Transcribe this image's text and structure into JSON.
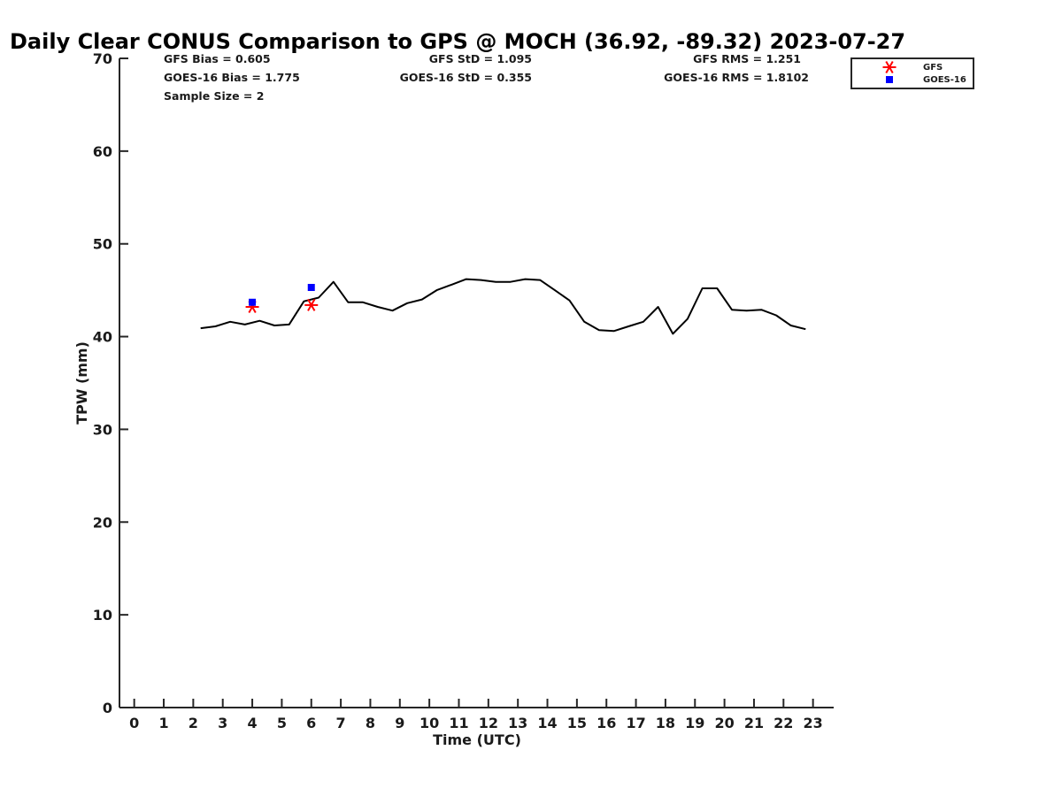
{
  "chart_data": {
    "type": "line",
    "title": "Daily Clear CONUS Comparison to GPS @ MOCH (36.92, -89.32) 2023-07-27",
    "xlabel": "Time (UTC)",
    "ylabel": "TPW (mm)",
    "xlim": [
      -0.5,
      23.7
    ],
    "ylim": [
      0,
      70
    ],
    "x_ticks": [
      0,
      1,
      2,
      3,
      4,
      5,
      6,
      7,
      8,
      9,
      10,
      11,
      12,
      13,
      14,
      15,
      16,
      17,
      18,
      19,
      20,
      21,
      22,
      23
    ],
    "y_ticks": [
      0,
      10,
      20,
      30,
      40,
      50,
      60,
      70
    ],
    "grid": false,
    "legend_position": "top-right",
    "stats": {
      "gfs_bias": "GFS Bias = 0.605",
      "goes_bias": "GOES-16 Bias = 1.775",
      "sample_size": "Sample Size = 2",
      "gfs_std": "GFS StD = 1.095",
      "goes_std": "GOES-16 StD = 0.355",
      "gfs_rms": "GFS RMS = 1.251",
      "goes_rms": "GOES-16 RMS = 1.8102"
    },
    "series": [
      {
        "name": "GPS",
        "kind": "line",
        "color": "#000000",
        "x": [
          2.25,
          2.75,
          3.25,
          3.75,
          4.25,
          4.75,
          5.25,
          5.75,
          6.25,
          6.75,
          7.25,
          7.75,
          8.25,
          8.75,
          9.25,
          9.75,
          10.25,
          10.75,
          11.25,
          11.75,
          12.25,
          12.75,
          13.25,
          13.75,
          14.25,
          14.75,
          15.25,
          15.75,
          16.25,
          16.75,
          17.25,
          17.75,
          18.25,
          18.75,
          19.25,
          19.75,
          20.25,
          20.75,
          21.25,
          21.75,
          22.25,
          22.75
        ],
        "y": [
          40.9,
          41.1,
          41.6,
          41.3,
          41.7,
          41.2,
          41.3,
          43.8,
          44.2,
          45.9,
          43.7,
          43.7,
          43.2,
          42.8,
          43.6,
          44.0,
          45.0,
          45.6,
          46.2,
          46.1,
          45.9,
          45.9,
          46.2,
          46.1,
          45.0,
          43.9,
          41.6,
          40.7,
          40.6,
          41.1,
          41.6,
          43.2,
          40.3,
          41.9,
          45.2,
          45.2,
          42.9,
          42.8,
          42.9,
          42.3,
          41.2,
          40.8
        ]
      },
      {
        "name": "GFS",
        "kind": "scatter",
        "marker": "asterisk",
        "color": "#ff0000",
        "x": [
          4.0,
          6.0
        ],
        "y": [
          43.2,
          43.4
        ]
      },
      {
        "name": "GOES-16",
        "kind": "scatter",
        "marker": "square",
        "color": "#0000ff",
        "x": [
          4.0,
          6.0
        ],
        "y": [
          43.7,
          45.3
        ]
      }
    ]
  },
  "legend": {
    "items": [
      {
        "label": "GFS",
        "marker": "asterisk",
        "color": "#ff0000"
      },
      {
        "label": "GOES-16",
        "marker": "square",
        "color": "#0000ff"
      }
    ]
  }
}
